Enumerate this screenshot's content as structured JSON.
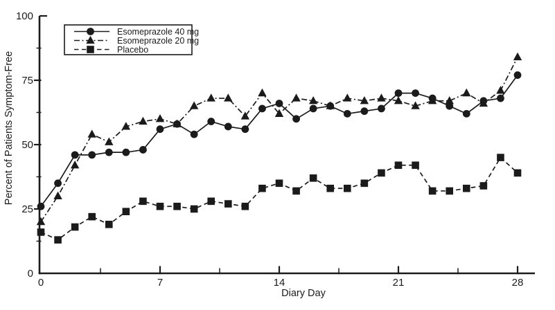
{
  "chart_data": {
    "type": "line",
    "title": "",
    "xlabel": "Diary Day",
    "ylabel": "Percent of Patients Symptom-Free",
    "xlim": [
      0,
      29
    ],
    "ylim": [
      0,
      100
    ],
    "grid": false,
    "legend_position": "top-left",
    "line_color": "#1b1b1b",
    "background_color": "#ffffff",
    "x_axis": {
      "major_ticks": [
        0,
        7,
        14,
        21,
        28
      ],
      "major_tick_labels": [
        "0",
        "7",
        "14",
        "21",
        "28"
      ],
      "minor_ticks": [
        3.5,
        10.5,
        17.5,
        24.5
      ]
    },
    "y_axis": {
      "major_ticks": [
        0,
        25,
        50,
        75,
        100
      ],
      "major_tick_labels": [
        "0",
        "25",
        "50",
        "75",
        "100"
      ],
      "minor_ticks": [
        12.5,
        37.5,
        62.5,
        87.5
      ]
    },
    "x": [
      0,
      1,
      2,
      3,
      4,
      5,
      6,
      7,
      8,
      9,
      10,
      11,
      12,
      13,
      14,
      15,
      16,
      17,
      18,
      19,
      20,
      21,
      22,
      23,
      24,
      25,
      26,
      27,
      28
    ],
    "series": [
      {
        "name": "Esomeprazole 40 mg",
        "marker": "circle",
        "line": "solid",
        "values": [
          26,
          35,
          46,
          46,
          47,
          47,
          48,
          56,
          58,
          54,
          59,
          57,
          56,
          64,
          66,
          60,
          64,
          65,
          62,
          63,
          64,
          70,
          70,
          68,
          65,
          62,
          67,
          68,
          77
        ]
      },
      {
        "name": "Esomeprazole 20 mg",
        "marker": "triangle",
        "line": "dashdot",
        "values": [
          20,
          30,
          42,
          54,
          51,
          57,
          59,
          60,
          58,
          65,
          68,
          68,
          61,
          70,
          62,
          68,
          67,
          65,
          68,
          67,
          68,
          67,
          65,
          67,
          67,
          70,
          66,
          71,
          84
        ]
      },
      {
        "name": "Placebo",
        "marker": "square",
        "line": "dashed",
        "values": [
          16,
          13,
          18,
          22,
          19,
          24,
          28,
          26,
          26,
          25,
          28,
          27,
          26,
          33,
          35,
          32,
          37,
          33,
          33,
          35,
          39,
          42,
          42,
          32,
          32,
          33,
          34,
          45,
          39
        ]
      }
    ]
  }
}
